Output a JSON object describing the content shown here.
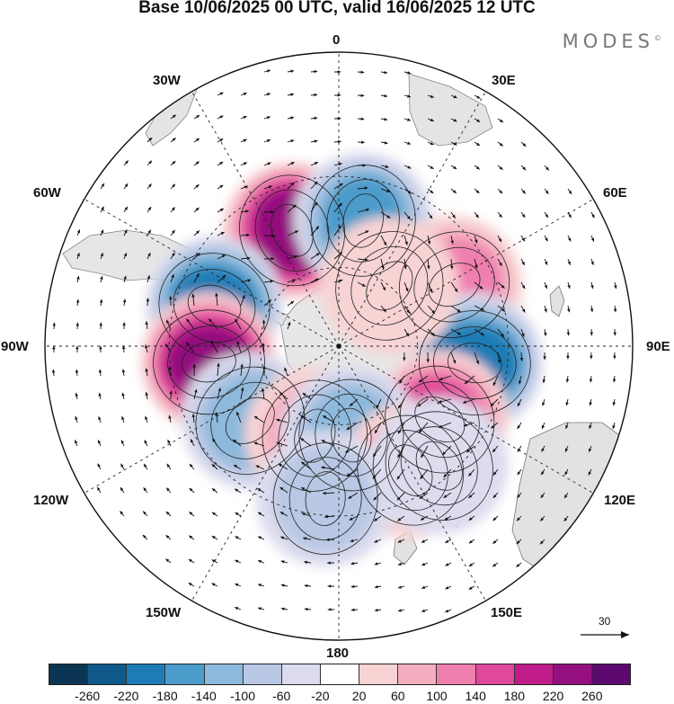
{
  "title": "Base 10/06/2025 00 UTC, valid 16/06/2025 12 UTC",
  "brand": "MODES",
  "brand_mark": "©",
  "longitude_labels": [
    "0",
    "30E",
    "60E",
    "90E",
    "120E",
    "150E",
    "180",
    "150W",
    "120W",
    "90W",
    "60W",
    "30W"
  ],
  "reference_vector": "30",
  "colorbar": {
    "colors": [
      "#0b3552",
      "#0f5a8a",
      "#1f7bb5",
      "#4b9bcb",
      "#8db9dc",
      "#b9c8e4",
      "#dcdcee",
      "#ffffff",
      "#f7d3d3",
      "#f4aec0",
      "#ef7fad",
      "#e0489b",
      "#bf1c8a",
      "#93107e",
      "#5c0a70"
    ],
    "ticks": [
      "-260",
      "-220",
      "-180",
      "-140",
      "-100",
      "-60",
      "-20",
      "20",
      "60",
      "100",
      "140",
      "180",
      "220",
      "260"
    ]
  },
  "anomalies": [
    {
      "lon": -22,
      "lat": -44,
      "value": 240
    },
    {
      "lon": 11,
      "lat": -43,
      "value": -140
    },
    {
      "lon": 62,
      "lat": -42,
      "value": 110
    },
    {
      "lon": -72,
      "lat": -42,
      "value": -180
    },
    {
      "lon": -97,
      "lat": -42,
      "value": 220
    },
    {
      "lon": 97,
      "lat": -40,
      "value": -210
    },
    {
      "lon": 126,
      "lat": -44,
      "value": 170
    },
    {
      "lon": -130,
      "lat": -47,
      "value": -100
    },
    {
      "lon": -165,
      "lat": -55,
      "value": 60
    },
    {
      "lon": 172,
      "lat": -56,
      "value": -120
    },
    {
      "lon": 150,
      "lat": -38,
      "value": 70
    },
    {
      "lon": -175,
      "lat": -35,
      "value": -80
    },
    {
      "lon": 140,
      "lat": -34,
      "value": -30
    },
    {
      "lon": 40,
      "lat": -60,
      "value": 30
    }
  ]
}
